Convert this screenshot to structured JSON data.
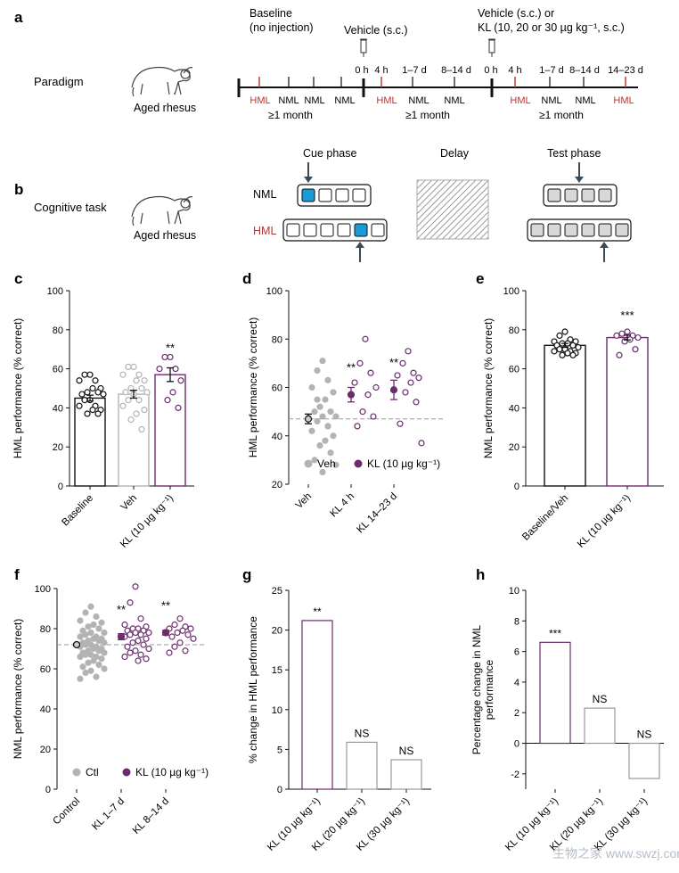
{
  "panel_letters": {
    "a": "a",
    "b": "b",
    "c": "c",
    "d": "d",
    "e": "e",
    "f": "f",
    "g": "g",
    "h": "h"
  },
  "paradigm": {
    "row_label": "Paradigm",
    "animal_label": "Aged rhesus",
    "baseline_label_1": "Baseline",
    "baseline_label_2": "(no injection)",
    "vehicle_label": "Vehicle (s.c.)",
    "treat_label_1": "Vehicle (s.c.) or",
    "treat_label_2": "KL (10, 20 or 30 µg kg⁻¹, s.c.)",
    "ticks_top": [
      "0 h",
      "4 h",
      "1–7 d",
      "8–14 d",
      "0 h",
      "4 h",
      "1–7 d",
      "8–14 d",
      "14–23 d"
    ],
    "ticks_bottom": [
      "HML",
      "NML",
      "NML",
      "NML",
      "HML",
      "NML",
      "NML",
      "HML",
      "NML",
      "NML",
      "HML"
    ],
    "month_label": "≥1 month",
    "hml_color": "#c0312f"
  },
  "task": {
    "row_label": "Cognitive task",
    "animal_label": "Aged rhesus",
    "cue_phase": "Cue phase",
    "delay": "Delay",
    "test_phase": "Test phase",
    "nml_label": "NML",
    "hml_label": "HML",
    "cue_color": "#1a9ad6"
  },
  "colors": {
    "veh": "#b3b3b3",
    "kl": "#6b2c6e",
    "black": "#111111"
  },
  "chart_data": [
    {
      "panel": "c",
      "type": "bar",
      "ylabel": "HML performance (% correct)",
      "ylim": [
        0,
        100
      ],
      "yticks": [
        0,
        20,
        40,
        60,
        80,
        100
      ],
      "categories": [
        "Baseline",
        "Veh",
        "KL (10 µg kg⁻¹)"
      ],
      "values": [
        45,
        47,
        57
      ],
      "errors": [
        1.5,
        2,
        3.5
      ],
      "significance": [
        "",
        "",
        "**"
      ],
      "points": [
        [
          57,
          57,
          54,
          54,
          50,
          50,
          48,
          48,
          47,
          47,
          44,
          44,
          41,
          41,
          39,
          39,
          37,
          37
        ],
        [
          61,
          61,
          57,
          57,
          54,
          54,
          50,
          50,
          48,
          48,
          47,
          44,
          44,
          41,
          39,
          37,
          34,
          29
        ],
        [
          66,
          66,
          60,
          60,
          54,
          48,
          44,
          40
        ]
      ]
    },
    {
      "panel": "d",
      "type": "scatter",
      "ylabel": "HML performance (% correct)",
      "ylim": [
        20,
        100
      ],
      "yticks": [
        20,
        40,
        60,
        80,
        100
      ],
      "categories": [
        "Veh",
        "KL 4 h",
        "KL 14–23 d"
      ],
      "reference_line": 47,
      "series": [
        {
          "name": "Veh",
          "means": [
            47,
            null,
            null
          ],
          "errors": [
            2,
            null,
            null
          ]
        },
        {
          "name": "KL (10 µg kg⁻¹)",
          "means": [
            null,
            57,
            59
          ],
          "errors": [
            null,
            3,
            4
          ]
        }
      ],
      "significance": [
        "",
        "**",
        "**"
      ],
      "points": [
        [
          71,
          67,
          63,
          60,
          58,
          55,
          52,
          50,
          50,
          48,
          48,
          46,
          44,
          42,
          40,
          38,
          36,
          33,
          30,
          28,
          25,
          55,
          44
        ],
        [
          80,
          70,
          66,
          62,
          60,
          57,
          50,
          48,
          44
        ],
        [
          75,
          70,
          66,
          65,
          64,
          62,
          58,
          54,
          45,
          37
        ]
      ]
    },
    {
      "panel": "e",
      "type": "bar",
      "ylabel": "NML performance (% correct)",
      "ylim": [
        0,
        100
      ],
      "yticks": [
        0,
        20,
        40,
        60,
        80,
        100
      ],
      "categories": [
        "Baseline/Veh",
        "KL (10 µg kg⁻¹)"
      ],
      "values": [
        72,
        76
      ],
      "errors": [
        1,
        1.2
      ],
      "significance": [
        "",
        "***"
      ],
      "points": [
        [
          79,
          77,
          75,
          74,
          74,
          73,
          73,
          72,
          72,
          71,
          70,
          70,
          69,
          69,
          68,
          68,
          67,
          67
        ],
        [
          79,
          78,
          77,
          77,
          76,
          75,
          74,
          70,
          67
        ]
      ]
    },
    {
      "panel": "f",
      "type": "scatter",
      "ylabel": "NML performance (% correct)",
      "ylim": [
        0,
        100
      ],
      "yticks": [
        0,
        20,
        40,
        60,
        80,
        100
      ],
      "categories": [
        "Control",
        "KL 1–7 d",
        "KL 8–14 d"
      ],
      "reference_line": 72,
      "series": [
        {
          "name": "Ctl",
          "means": [
            72,
            null,
            null
          ],
          "errors": [
            0.6,
            null,
            null
          ]
        },
        {
          "name": "KL (10 µg kg⁻¹)",
          "means": [
            null,
            76,
            78
          ],
          "errors": [
            null,
            1.5,
            1.2
          ]
        }
      ],
      "significance": [
        "",
        "**",
        "**"
      ],
      "points": [
        [
          91,
          88,
          86,
          84,
          83,
          82,
          81,
          80,
          79,
          78,
          78,
          77,
          76,
          76,
          75,
          75,
          74,
          74,
          73,
          73,
          72,
          72,
          71,
          71,
          70,
          70,
          69,
          69,
          68,
          68,
          67,
          67,
          66,
          66,
          65,
          64,
          63,
          62,
          61,
          60,
          59,
          58,
          56,
          55
        ],
        [
          101,
          93,
          85,
          82,
          81,
          80,
          80,
          79,
          79,
          78,
          78,
          77,
          77,
          76,
          75,
          74,
          73,
          72,
          71,
          70,
          69,
          68,
          67,
          66,
          65,
          64
        ],
        [
          85,
          82,
          81,
          80,
          80,
          79,
          78,
          77,
          76,
          75,
          73,
          71,
          69,
          68
        ]
      ]
    },
    {
      "panel": "g",
      "type": "bar",
      "ylabel": "% change in HML performance",
      "ylim": [
        0,
        25
      ],
      "yticks": [
        0,
        5,
        10,
        15,
        20,
        25
      ],
      "categories": [
        "KL (10 µg kg⁻¹)",
        "KL (20 µg kg⁻¹)",
        "KL (30 µg kg⁻¹)"
      ],
      "values": [
        21.2,
        5.9,
        3.7
      ],
      "significance": [
        "**",
        "NS",
        "NS"
      ]
    },
    {
      "panel": "h",
      "type": "bar",
      "ylabel_1": "Percentage change in NML",
      "ylabel_2": "performance",
      "ylim": [
        -3,
        10
      ],
      "yticks": [
        -2,
        0,
        2,
        4,
        6,
        8,
        10
      ],
      "categories": [
        "KL (10 µg kg⁻¹)",
        "KL (20 µg kg⁻¹)",
        "KL (30 µg kg⁻¹)"
      ],
      "values": [
        6.6,
        2.3,
        -2.3
      ],
      "significance": [
        "***",
        "NS",
        "NS"
      ]
    }
  ],
  "legends": {
    "d_veh": "Veh",
    "d_kl": "KL (10 µg kg⁻¹)",
    "f_ctl": "Ctl",
    "f_kl": "KL (10 µg kg⁻¹)"
  },
  "watermark": "生物之家 www.swzj.com"
}
